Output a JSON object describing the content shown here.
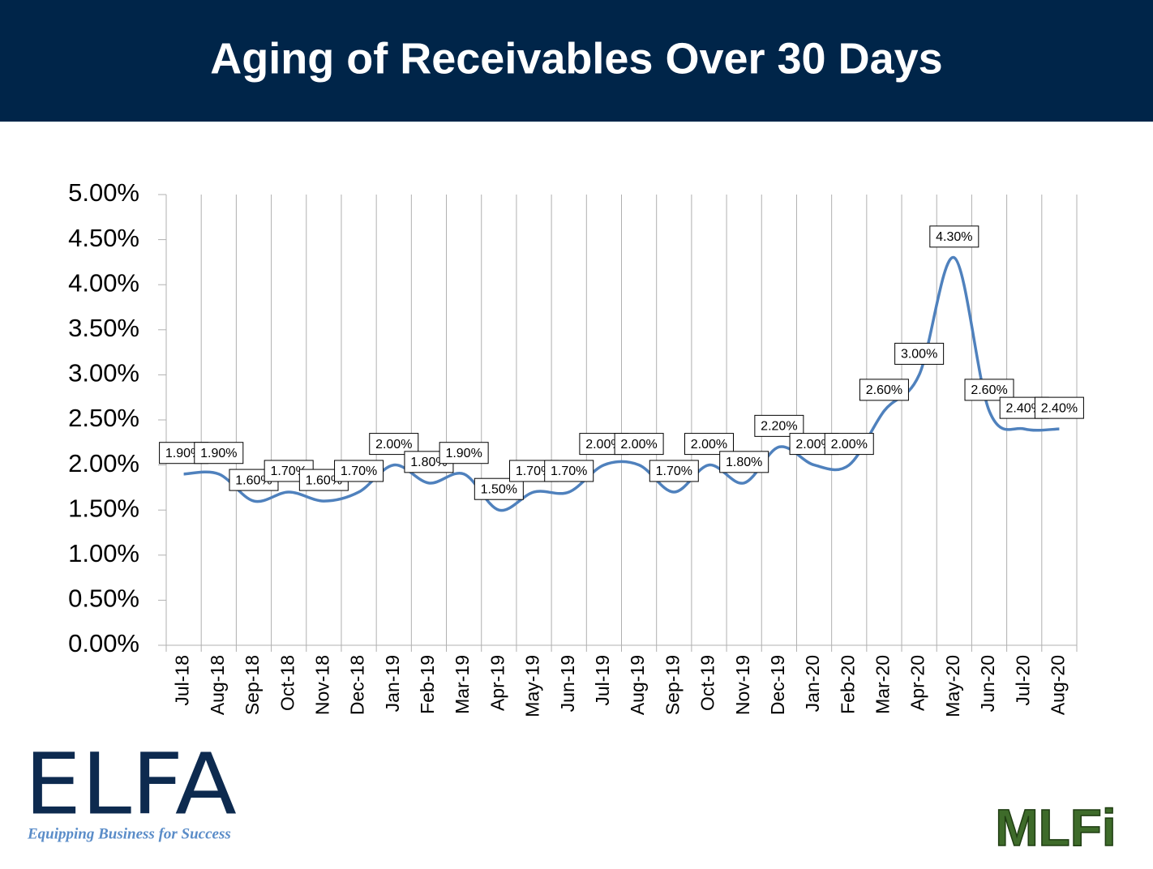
{
  "chart_data": {
    "type": "line",
    "title": "Aging of Receivables Over 30 Days",
    "categories": [
      "Jul-18",
      "Aug-18",
      "Sep-18",
      "Oct-18",
      "Nov-18",
      "Dec-18",
      "Jan-19",
      "Feb-19",
      "Mar-19",
      "Apr-19",
      "May-19",
      "Jun-19",
      "Jul-19",
      "Aug-19",
      "Sep-19",
      "Oct-19",
      "Nov-19",
      "Dec-19",
      "Jan-20",
      "Feb-20",
      "Mar-20",
      "Apr-20",
      "May-20",
      "Jun-20",
      "Jul-20",
      "Aug-20"
    ],
    "series": [
      {
        "name": "Aging of Receivables Over 30 Days",
        "color": "#4f81bd",
        "values": [
          1.9,
          1.9,
          1.6,
          1.7,
          1.6,
          1.7,
          2.0,
          1.8,
          1.9,
          1.5,
          1.7,
          1.7,
          2.0,
          2.0,
          1.7,
          2.0,
          1.8,
          2.2,
          2.0,
          2.0,
          2.6,
          3.0,
          4.3,
          2.6,
          2.4,
          2.4
        ],
        "value_labels": [
          "1.90%",
          "1.90%",
          "1.60%",
          "1.70%",
          "1.60%",
          "1.70%",
          "2.00%",
          "1.80%",
          "1.90%",
          "1.50%",
          "1.70%",
          "1.70%",
          "2.00%",
          "2.00%",
          "1.70%",
          "2.00%",
          "1.80%",
          "2.20%",
          "2.00%",
          "2.00%",
          "2.60%",
          "3.00%",
          "4.30%",
          "2.60%",
          "2.40%",
          "2.40%"
        ]
      }
    ],
    "ylim": [
      0,
      5
    ],
    "yticks": [
      {
        "value": 0,
        "label": "0.00%"
      },
      {
        "value": 0.5,
        "label": "0.50%"
      },
      {
        "value": 1,
        "label": "1.00%"
      },
      {
        "value": 1.5,
        "label": "1.50%"
      },
      {
        "value": 2,
        "label": "2.00%"
      },
      {
        "value": 2.5,
        "label": "2.50%"
      },
      {
        "value": 3,
        "label": "3.00%"
      },
      {
        "value": 3.5,
        "label": "3.50%"
      },
      {
        "value": 4,
        "label": "4.00%"
      },
      {
        "value": 4.5,
        "label": "4.50%"
      },
      {
        "value": 5,
        "label": "5.00%"
      }
    ],
    "grid": true
  },
  "logos": {
    "left": "ELFA",
    "left_tagline": "Equipping Business for Success",
    "right": "MLFi"
  }
}
